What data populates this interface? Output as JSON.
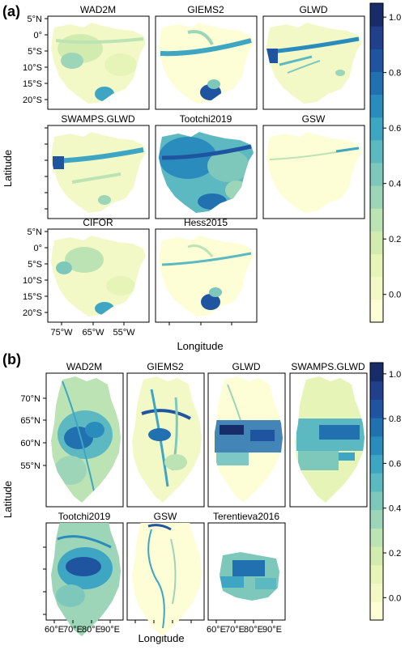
{
  "panels": [
    {
      "label": "(a)",
      "ylabel": "Latitude",
      "xlabel": "Longitude",
      "lat_ticks": [
        "5°N",
        "0°",
        "5°S",
        "10°S",
        "15°S",
        "20°S"
      ],
      "lon_ticks": [
        "75°W",
        "65°W",
        "55°W"
      ]
    },
    {
      "label": "(b)",
      "ylabel": "Latitude",
      "xlabel": "Longitude",
      "lat_ticks": [
        "70°N",
        "65°N",
        "60°N",
        "55°N"
      ],
      "lon_ticks": [
        "60°E",
        "70°E",
        "80°E",
        "90°E"
      ]
    }
  ],
  "chart_data": [
    {
      "type": "heatmap",
      "panel": "(a)",
      "maps": [
        "WAD2M",
        "GIEMS2",
        "GLWD",
        "SWAMPS.GLWD",
        "Tootchi2019",
        "GSW",
        "CIFOR",
        "Hess2015"
      ],
      "xlabel": "Longitude",
      "ylabel": "Latitude",
      "lat_ticks": [
        "5°N",
        "0°",
        "5°S",
        "10°S",
        "15°S",
        "20°S"
      ],
      "lon_ticks": [
        "75°W",
        "65°W",
        "55°W"
      ],
      "colorbar": {
        "ticks": [
          "0.0",
          "0.2",
          "0.4",
          "0.6",
          "0.8",
          "1.0"
        ],
        "range": [
          -0.1,
          1.05
        ],
        "colors": [
          "#fdfed6",
          "#f3f9c6",
          "#e6f4b8",
          "#d2ecb0",
          "#bbe3b4",
          "#9dd5b8",
          "#7ec8bb",
          "#5db9c1",
          "#3ea6c3",
          "#2a8cbd",
          "#2170b0",
          "#1f55a0",
          "#223f8c",
          "#182c6a"
        ]
      }
    },
    {
      "type": "heatmap",
      "panel": "(b)",
      "maps": [
        "WAD2M",
        "GIEMS2",
        "GLWD",
        "SWAMPS.GLWD",
        "Tootchi2019",
        "GSW",
        "Terentieva2016"
      ],
      "xlabel": "Longitude",
      "ylabel": "Latitude",
      "lat_ticks": [
        "70°N",
        "65°N",
        "60°N",
        "55°N"
      ],
      "lon_ticks": [
        "60°E",
        "70°E",
        "80°E",
        "90°E"
      ],
      "colorbar": {
        "ticks": [
          "0.0",
          "0.2",
          "0.4",
          "0.6",
          "0.8",
          "1.0"
        ],
        "range": [
          -0.1,
          1.05
        ],
        "colors": [
          "#fdfed6",
          "#f3f9c6",
          "#e6f4b8",
          "#d2ecb0",
          "#bbe3b4",
          "#9dd5b8",
          "#7ec8bb",
          "#5db9c1",
          "#3ea6c3",
          "#2a8cbd",
          "#2170b0",
          "#1f55a0",
          "#223f8c",
          "#182c6a"
        ]
      }
    }
  ]
}
